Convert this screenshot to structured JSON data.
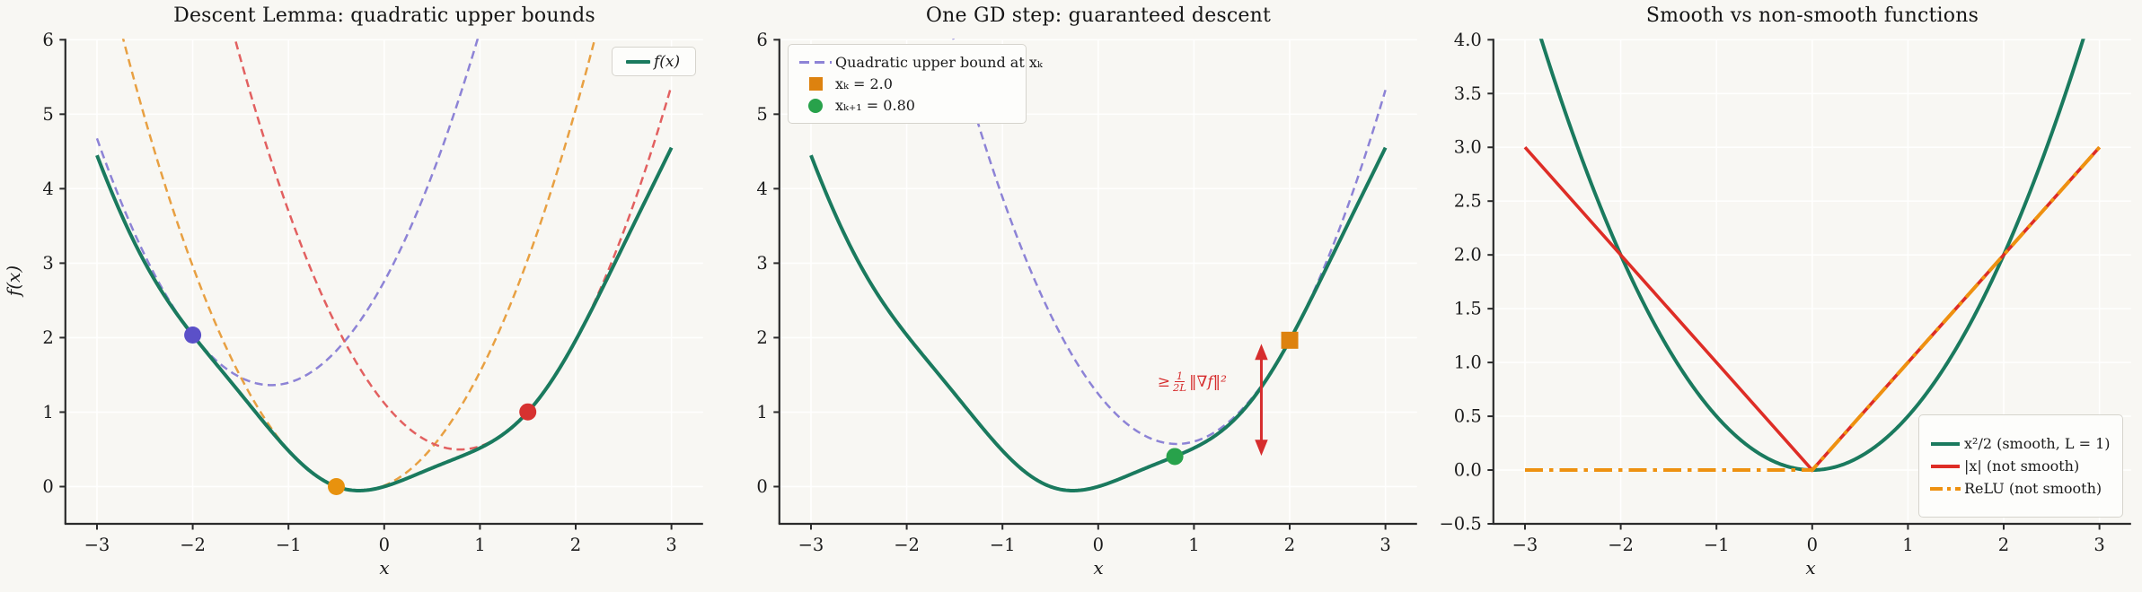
{
  "figure": {
    "background": "#f8f7f3",
    "grid_color": "#ffffff",
    "spine_color": "#2b2b2b",
    "text_color": "#1b1b1b"
  },
  "chart_data": [
    {
      "type": "line",
      "title": "Descent Lemma: quadratic upper bounds",
      "xlabel": "x",
      "ylabel": "f(x)",
      "xlim": [
        -3.33,
        3.33
      ],
      "ylim": [
        -0.5,
        6
      ],
      "grid": true,
      "xticks": [
        -3,
        -2,
        -1,
        0,
        1,
        2,
        3
      ],
      "xtick_labels": [
        "−3",
        "−2",
        "−1",
        "0",
        "1",
        "2",
        "3"
      ],
      "yticks": [
        0,
        1,
        2,
        3,
        4,
        5,
        6
      ],
      "ytick_labels": [
        "0",
        "1",
        "2",
        "3",
        "4",
        "5",
        "6"
      ],
      "series": [
        {
          "name": "upper-bound-at--2",
          "fn": "quad_bound",
          "formula": "f(x0) + f'(x0)(x-x0) + (L/2)(x-x0)^2",
          "params": {
            "x0": -2,
            "L": 2
          },
          "x_range": [
            -3,
            3
          ],
          "color": "#8d83d6",
          "width": 2.5,
          "dash": [
            9,
            5.5
          ],
          "vertex": [
            -1.18,
            1.36
          ]
        },
        {
          "name": "upper-bound-at--0.5",
          "fn": "quad_bound",
          "formula": "f(x0) + f'(x0)(x-x0) + (L/2)(x-x0)^2",
          "params": {
            "x0": -0.5,
            "L": 2
          },
          "x_range": [
            -3,
            3
          ],
          "color": "#e8a042",
          "width": 2.5,
          "dash": [
            9,
            5.5
          ],
          "vertex": [
            -0.26,
            -0.06
          ]
        },
        {
          "name": "upper-bound-at-1.5",
          "fn": "quad_bound",
          "formula": "f(x0) + f'(x0)(x-x0) + (L/2)(x-x0)^2",
          "params": {
            "x0": 1.5,
            "L": 2
          },
          "x_range": [
            -3,
            3
          ],
          "color": "#e26060",
          "width": 2.5,
          "dash": [
            9,
            5.5
          ],
          "vertex": [
            0.79,
            0.5
          ]
        },
        {
          "name": "f",
          "fn": "f",
          "formula": "f(x) = x^2/2 + sin(3x)/8",
          "params": {},
          "x_range": [
            -3,
            3
          ],
          "color": "#1a7a5e",
          "width": 4,
          "dash": null
        }
      ],
      "markers": [
        {
          "shape": "circle",
          "x": -2,
          "y": 2.035,
          "color": "#5b50c8",
          "size": 19
        },
        {
          "shape": "circle",
          "x": -0.5,
          "y": 0.0,
          "color": "#e8920e",
          "size": 19
        },
        {
          "shape": "circle",
          "x": 1.5,
          "y": 1.003,
          "color": "#d73230",
          "size": 19
        }
      ],
      "legend": {
        "position": "upper-right",
        "entries": [
          {
            "label": "f(x)",
            "type": "line",
            "color": "#1a7a5e"
          }
        ]
      }
    },
    {
      "type": "line",
      "title": "One GD step: guaranteed descent",
      "xlabel": "x",
      "ylabel": null,
      "xlim": [
        -3.33,
        3.33
      ],
      "ylim": [
        -0.5,
        6
      ],
      "grid": true,
      "xticks": [
        -3,
        -2,
        -1,
        0,
        1,
        2,
        3
      ],
      "xtick_labels": [
        "−3",
        "−2",
        "−1",
        "0",
        "1",
        "2",
        "3"
      ],
      "yticks": [
        0,
        1,
        2,
        3,
        4,
        5,
        6
      ],
      "ytick_labels": [
        "0",
        "1",
        "2",
        "3",
        "4",
        "5",
        "6"
      ],
      "series": [
        {
          "name": "quadratic-upper-bound-at-xk",
          "fn": "quad_bound",
          "formula": "f(2) + f'(2)(x-2) + (x-2)^2",
          "params": {
            "x0": 2,
            "L": 2
          },
          "x_range": [
            -3,
            3
          ],
          "color": "#8d83d6",
          "width": 2.5,
          "dash": [
            9,
            5.5
          ],
          "vertex": [
            0.82,
            0.57
          ]
        },
        {
          "name": "f",
          "fn": "f",
          "formula": "f(x) = x^2/2 + sin(3x)/8",
          "params": {},
          "x_range": [
            -3,
            3
          ],
          "color": "#1a7a5e",
          "width": 4,
          "dash": null
        }
      ],
      "markers": [
        {
          "shape": "square",
          "x": 2.0,
          "y": 1.965,
          "color": "#dd820f",
          "size": 19
        },
        {
          "shape": "circle",
          "x": 0.8,
          "y": 0.404,
          "color": "#28a24b",
          "size": 19
        }
      ],
      "annotation": {
        "arrow": {
          "x": 1.704,
          "y1": 0.43,
          "y2": 1.9,
          "color": "#d62d2d"
        },
        "text_geq": "≥",
        "text_frac_num": "1",
        "text_frac_den": "2L",
        "text_norm": "‖∇f‖²"
      },
      "legend": {
        "position": "upper-left",
        "entries": [
          {
            "label": "Quadratic upper bound at xₖ",
            "type": "dashed-line",
            "color": "#8d83d6"
          },
          {
            "label": "xₖ = 2.0",
            "type": "square",
            "color": "#dd820f"
          },
          {
            "label": "xₖ₊₁ = 0.80",
            "type": "circle",
            "color": "#28a24b"
          }
        ]
      }
    },
    {
      "type": "line",
      "title": "Smooth vs non-smooth functions",
      "xlabel": "x",
      "ylabel": null,
      "xlim": [
        -3.33,
        3.33
      ],
      "ylim": [
        -0.5,
        4.0
      ],
      "grid": true,
      "xticks": [
        -3,
        -2,
        -1,
        0,
        1,
        2,
        3
      ],
      "xtick_labels": [
        "−3",
        "−2",
        "−1",
        "0",
        "1",
        "2",
        "3"
      ],
      "yticks": [
        -0.5,
        0,
        0.5,
        1,
        1.5,
        2,
        2.5,
        3,
        3.5,
        4
      ],
      "ytick_labels": [
        "−0.5",
        "0.0",
        "0.5",
        "1.0",
        "1.5",
        "2.0",
        "2.5",
        "3.0",
        "3.5",
        "4.0"
      ],
      "series": [
        {
          "name": "half-square",
          "fn": "half_square",
          "formula": "x^2/2",
          "params": {},
          "x_range": [
            -3,
            3
          ],
          "color": "#1a7a5e",
          "width": 4,
          "dash": null
        },
        {
          "name": "abs",
          "fn": "abs",
          "formula": "|x|",
          "params": {},
          "x_range": [
            -3,
            3
          ],
          "color": "#de2d26",
          "width": 3.6,
          "dash": null
        },
        {
          "name": "relu",
          "fn": "relu",
          "formula": "max(0, x)",
          "params": {},
          "x_range": [
            -3,
            3
          ],
          "color": "#ee9110",
          "width": 4,
          "dash": [
            20,
            7,
            4.5,
            7
          ]
        }
      ],
      "markers": [],
      "legend": {
        "position": "lower-right",
        "entries": [
          {
            "label": "x²/2 (smooth, L = 1)",
            "type": "line",
            "color": "#1a7a5e"
          },
          {
            "label": "|x| (not smooth)",
            "type": "line",
            "color": "#de2d26"
          },
          {
            "label": "ReLU (not smooth)",
            "type": "dashdot-line",
            "color": "#ee9110"
          }
        ]
      }
    }
  ]
}
